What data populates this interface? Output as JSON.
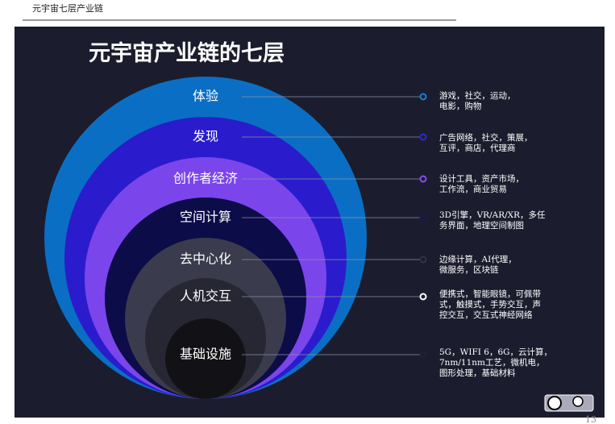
{
  "header": {
    "title": "元宇宙七层产业链"
  },
  "slide": {
    "title": "元宇宙产业链的七层",
    "layers": [
      {
        "label": "体验",
        "description": [
          "游戏，社交，运动，",
          "电影，购物"
        ]
      },
      {
        "label": "发现",
        "description": [
          "广告网络，社交，策展，",
          "互评，商店，代理商"
        ]
      },
      {
        "label": "创作者经济",
        "description": [
          "设计工具，资产市场，",
          "工作流，商业贸易"
        ]
      },
      {
        "label": "空间计算",
        "description": [
          "3D引擎，VR/AR/XR，多任",
          "务界面，地理空间制图"
        ]
      },
      {
        "label": "去中心化",
        "description": [
          "边缘计算，AI代理，",
          "微服务，区块链"
        ]
      },
      {
        "label": "人机交互",
        "description": [
          "便携式，智能眼镜，可佩带",
          "式，触摸式，手势交互，声",
          "控交互，交互式神经网络"
        ]
      },
      {
        "label": "基础设施",
        "description": [
          "5G，WIFI 6，6G，云计算，",
          "7nm/11nm工艺，微机电，",
          "图形处理，基础材料"
        ]
      }
    ]
  },
  "footer": {
    "page": "13"
  }
}
